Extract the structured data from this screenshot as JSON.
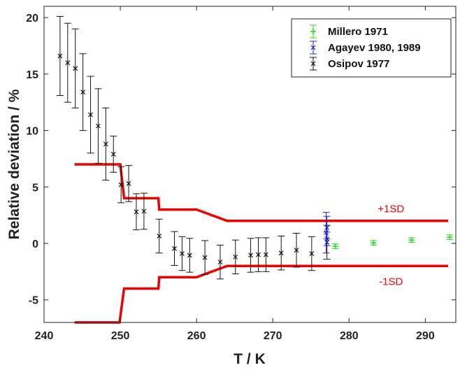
{
  "chart_data": {
    "type": "scatter",
    "xlabel": "T / K",
    "ylabel": "Relative deviation / %",
    "xlim": [
      240,
      294
    ],
    "ylim": [
      -7,
      21
    ],
    "xticks": [
      240,
      250,
      260,
      270,
      280,
      290
    ],
    "yticks": [
      -5,
      0,
      5,
      10,
      15,
      20
    ],
    "grid": false,
    "legend_position": "top-right",
    "series": [
      {
        "name": "Millero 1971",
        "marker": "plus",
        "color": "#22dd22",
        "points": [
          {
            "x": 278.2,
            "y": -0.25,
            "err": 0.2
          },
          {
            "x": 283.2,
            "y": 0.05,
            "err": 0.2
          },
          {
            "x": 288.2,
            "y": 0.3,
            "err": 0.2
          },
          {
            "x": 293.2,
            "y": 0.55,
            "err": 0.2
          }
        ]
      },
      {
        "name": "Agayev 1980, 1989",
        "marker": "x",
        "color": "#2222cc",
        "points": [
          {
            "x": 277.0,
            "y": 0.95,
            "err": 1.8
          },
          {
            "x": 277.1,
            "y": 1.4,
            "err": 1.0
          },
          {
            "x": 277.1,
            "y": 0.4,
            "err": 0.6
          }
        ]
      },
      {
        "name": "Osipov 1977",
        "marker": "x",
        "color": "#111111",
        "points": [
          {
            "x": 242.1,
            "y": 16.6,
            "err": 3.5
          },
          {
            "x": 243.1,
            "y": 16.0,
            "err": 3.5
          },
          {
            "x": 244.1,
            "y": 15.5,
            "err": 3.5
          },
          {
            "x": 245.1,
            "y": 13.4,
            "err": 3.4
          },
          {
            "x": 246.1,
            "y": 11.4,
            "err": 3.4
          },
          {
            "x": 247.1,
            "y": 10.4,
            "err": 3.3
          },
          {
            "x": 248.1,
            "y": 8.8,
            "err": 3.2
          },
          {
            "x": 249.1,
            "y": 7.9,
            "err": 1.6
          },
          {
            "x": 250.1,
            "y": 5.2,
            "err": 1.6
          },
          {
            "x": 251.1,
            "y": 5.3,
            "err": 1.6
          },
          {
            "x": 252.1,
            "y": 2.8,
            "err": 1.6
          },
          {
            "x": 253.1,
            "y": 2.85,
            "err": 1.6
          },
          {
            "x": 255.1,
            "y": 0.65,
            "err": 1.5
          },
          {
            "x": 257.1,
            "y": -0.45,
            "err": 1.5
          },
          {
            "x": 258.1,
            "y": -0.9,
            "err": 1.5
          },
          {
            "x": 259.1,
            "y": -1.05,
            "err": 1.5
          },
          {
            "x": 261.1,
            "y": -1.25,
            "err": 1.5
          },
          {
            "x": 263.1,
            "y": -1.65,
            "err": 1.5
          },
          {
            "x": 265.1,
            "y": -1.2,
            "err": 1.5
          },
          {
            "x": 267.1,
            "y": -1.05,
            "err": 1.5
          },
          {
            "x": 268.1,
            "y": -1.0,
            "err": 1.5
          },
          {
            "x": 269.1,
            "y": -1.0,
            "err": 1.5
          },
          {
            "x": 271.1,
            "y": -0.85,
            "err": 1.5
          },
          {
            "x": 273.1,
            "y": -0.6,
            "err": 1.5
          },
          {
            "x": 275.1,
            "y": -0.9,
            "err": 1.5
          },
          {
            "x": 277.1,
            "y": 0.1,
            "err": 1.5
          }
        ]
      }
    ],
    "bounds": [
      {
        "label": "+1SD",
        "color": "#ee0000",
        "points": [
          [
            244,
            7
          ],
          [
            250,
            7
          ],
          [
            250.5,
            4
          ],
          [
            255,
            4
          ],
          [
            255.1,
            3
          ],
          [
            260,
            3
          ],
          [
            264,
            2
          ],
          [
            293,
            2
          ]
        ]
      },
      {
        "label": "-1SD",
        "color": "#ee0000",
        "points": [
          [
            244,
            -7
          ],
          [
            249.9,
            -7
          ],
          [
            250.5,
            -4
          ],
          [
            255,
            -4
          ],
          [
            255.1,
            -3
          ],
          [
            260,
            -3
          ],
          [
            264,
            -2
          ],
          [
            293,
            -2
          ]
        ]
      }
    ]
  }
}
